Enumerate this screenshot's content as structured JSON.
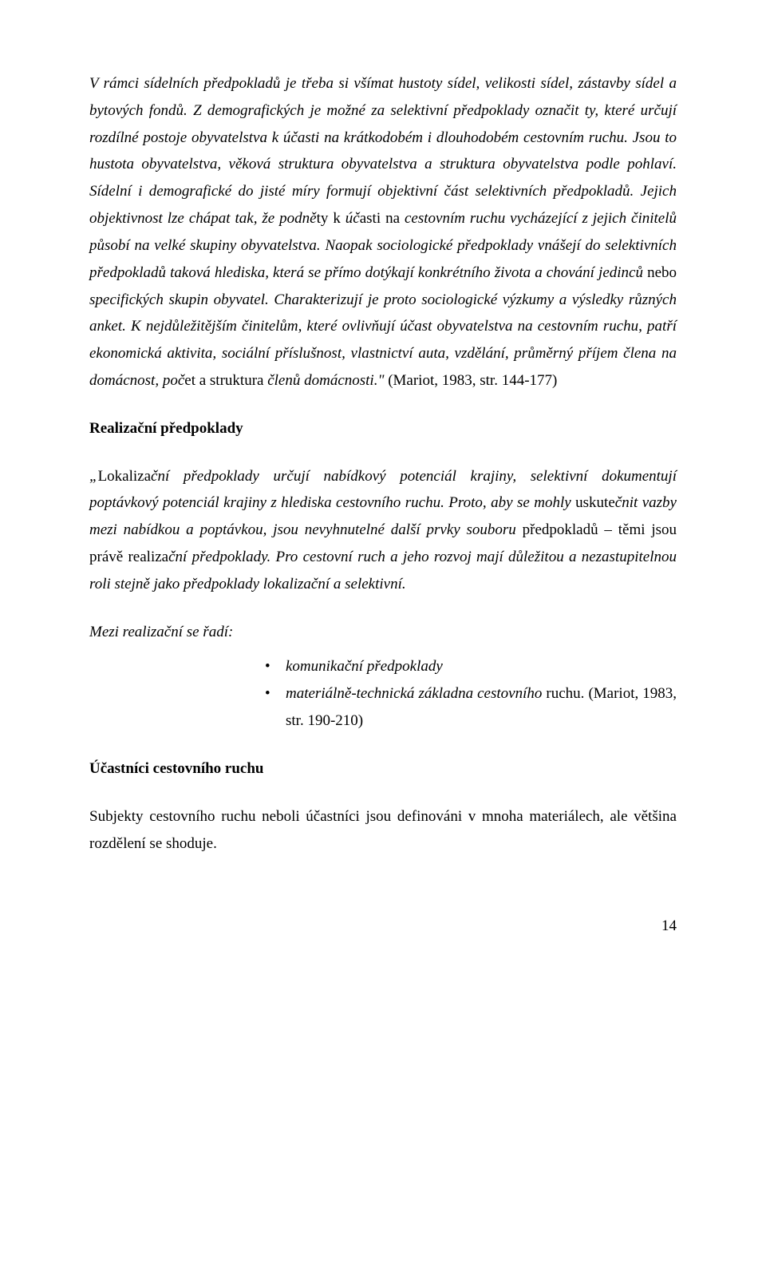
{
  "p1": {
    "span1": "V rámci sídelních předpokladů je třeba si všímat hustoty sídel, velikosti sídel, zástavby sídel a bytových fondů.",
    "span2": "Z demografických je možné za selektivní předpoklady označit ty, které určují rozdílné postoje obyvatelstva k účasti na krátkodobém i dlouhodobém cestovním ruchu. Jsou to hustota obyvatelstva, věková struktura obyvatelstva a struktura obyvatelstva podle pohlaví. Sídelní i demografické do jisté míry formují objektivní část selektivních předpokladů. Jejich objektivnost lze chápat tak, že podně",
    "span3": "ty k ",
    "span4": "úč",
    "span5": "asti na  ",
    "span6": "cestovním ruchu vycházející z jejich činitelů působí na velké skupiny obyvatelstva. Naopak sociologické předpoklady vnášejí do selektivních předpokladů taková hlediska, která se přímo dotýkají konkrétního života a chování jedinců",
    "span7": " nebo ",
    "span8": "specifických skupin obyvatel. Charakterizují je proto sociologické výzkumy a výsledky různých anket. K nejdůležitějším činitelům, které ovlivňují účast obyvatelstva na cestovním ruchu, patří ekonomická aktivita, sociální příslušnost, vlastnictví auta, vzdělání, průměrný příjem člena na domácnost, poč",
    "span9": "et   a   struktura   ",
    "span10": "členů",
    "span11": " ",
    "span12": "domácnosti.\"",
    "cite": "(Mariot, 1983, str. 144-177)"
  },
  "h1": "Realizační předpoklady",
  "p2": {
    "span1": "„",
    "span2": "Lokaliza",
    "span3": "ční předpoklady ur",
    "span4": "čují nabídkový potenciál krajiny, selektivní dokumentují poptávkový potenciál krajiny z hlediska cestovního ruchu. Proto, aby se mohly",
    "span5": " uskute",
    "span6": "čnit vazby mezi nabídkou a poptávkou, jsou nevyhnutelné další prvky souboru",
    "span7": " předpokladů – těmi jsou právě ",
    "span8": "realiza",
    "span9": "ční předpoklady. Pro cestovní ruch a jeho rozvoj mají důležitou a nezastupitelnou roli stejně",
    "span10": " jako předpoklady lokalizační a selektivní."
  },
  "p3": "Mezi realizační se řadí:",
  "bullets": {
    "b1": "komunikační předpoklady",
    "b2a": "materiálně-technická  základna  cestovního",
    "b2b": "  ruchu. ",
    "b2cite": "(Mariot, 1983, str. 190-210)"
  },
  "h2": "Účastníci cestovního ruchu",
  "p4": "Subjekty cestovního ruchu neboli účastníci jsou definováni v mnoha materiálech, ale většina rozdělení se shoduje.",
  "pageNum": "14"
}
